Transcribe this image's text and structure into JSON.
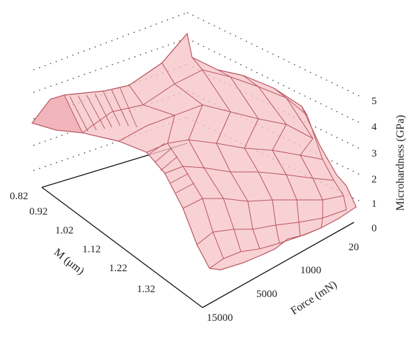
{
  "chart_data": {
    "type": "surface",
    "title": "",
    "x_axis": {
      "label": "Force (mN)",
      "tick_labels": [
        "20",
        "1000",
        "5000",
        "15000"
      ]
    },
    "y_axis": {
      "label": "M (μm)",
      "tick_labels": [
        "0.82",
        "0.92",
        "1.02",
        "1.12",
        "1.22",
        "1.32"
      ]
    },
    "z_axis": {
      "label": "Microhardness (GPa)",
      "range": [
        0,
        5
      ],
      "tick_labels": [
        "0",
        "1",
        "2",
        "3",
        "4",
        "5"
      ]
    },
    "grid": true,
    "surface_color": "#f6c4c8",
    "mesh_color": "#b85560",
    "surface_profile": {
      "force_stations": [
        "20",
        "1000",
        "5000",
        "15000"
      ],
      "M_values": [
        0.82,
        0.92,
        1.02,
        1.12,
        1.22,
        1.32
      ],
      "hardness_GPa": [
        [
          4.6,
          4.3,
          3.5,
          2.5,
          1.7,
          1.1
        ],
        [
          4.5,
          4.1,
          3.3,
          2.2,
          1.3,
          0.8
        ],
        [
          4.3,
          3.8,
          2.9,
          1.7,
          0.9,
          0.4
        ],
        [
          4.4,
          3.7,
          2.6,
          1.4,
          0.6,
          0.2
        ]
      ]
    }
  }
}
